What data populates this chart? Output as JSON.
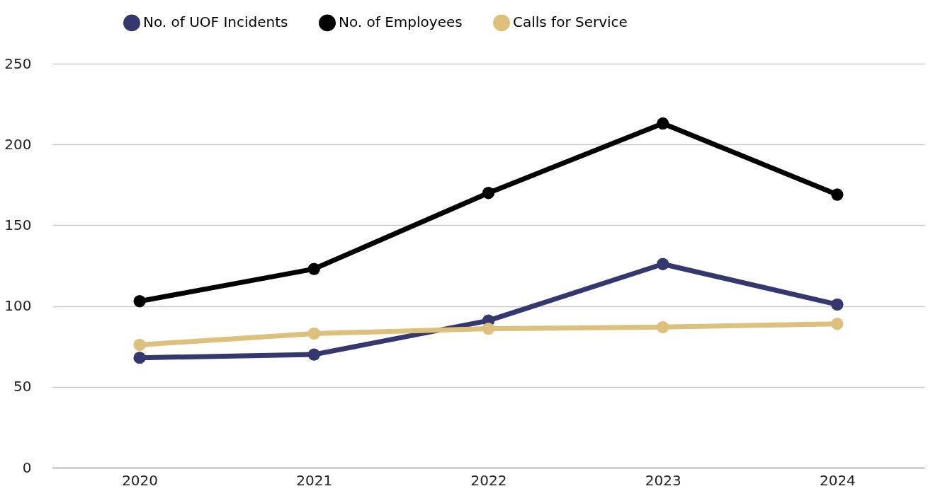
{
  "chart_data": {
    "type": "line",
    "categories": [
      "2020",
      "2021",
      "2022",
      "2023",
      "2024"
    ],
    "series": [
      {
        "name": "No. of UOF Incidents",
        "color": "#35376f",
        "values": [
          68,
          70,
          91,
          126,
          101
        ]
      },
      {
        "name": "No. of Employees",
        "color": "#000000",
        "values": [
          103,
          123,
          170,
          213,
          169
        ]
      },
      {
        "name": "Calls for Service",
        "color": "#dcc07c",
        "values": [
          76,
          83,
          86,
          87,
          89
        ]
      }
    ],
    "ylim": [
      0,
      250
    ],
    "yticks": [
      0,
      50,
      100,
      150,
      200,
      250
    ],
    "grid": "y",
    "legend": "top",
    "marker": "circle",
    "line_style": "solid"
  }
}
